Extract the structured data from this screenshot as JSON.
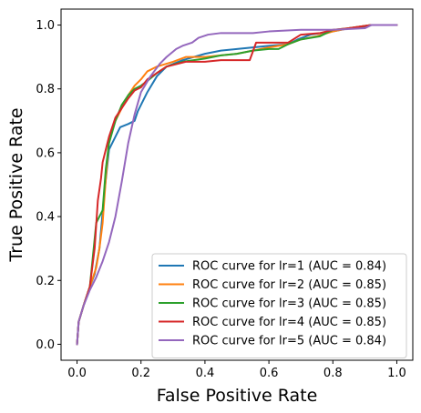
{
  "chart_data": {
    "type": "line",
    "title": "",
    "xlabel": "False Positive Rate",
    "ylabel": "True Positive Rate",
    "xlim": [
      -0.05,
      1.05
    ],
    "ylim": [
      -0.05,
      1.05
    ],
    "x_ticks": [
      "0.0",
      "0.2",
      "0.4",
      "0.6",
      "0.8",
      "1.0"
    ],
    "y_ticks": [
      "0.0",
      "0.2",
      "0.4",
      "0.6",
      "0.8",
      "1.0"
    ],
    "grid": false,
    "legend_position": "lower-right",
    "series": [
      {
        "name": "ROC curve for lr=1 (AUC = 0.84)",
        "color": "#1f77b4",
        "x": [
          0.0,
          0.005,
          0.02,
          0.04,
          0.055,
          0.07,
          0.085,
          0.1,
          0.12,
          0.135,
          0.16,
          0.18,
          0.19,
          0.22,
          0.25,
          0.28,
          0.33,
          0.4,
          0.45,
          0.5,
          0.55,
          0.6,
          0.66,
          0.69,
          0.73,
          0.8,
          0.85,
          0.9,
          0.92,
          1.0
        ],
        "y": [
          0.0,
          0.07,
          0.12,
          0.18,
          0.22,
          0.3,
          0.47,
          0.61,
          0.65,
          0.68,
          0.69,
          0.7,
          0.73,
          0.79,
          0.84,
          0.87,
          0.89,
          0.91,
          0.92,
          0.925,
          0.93,
          0.935,
          0.94,
          0.955,
          0.97,
          0.98,
          0.99,
          0.995,
          1.0,
          1.0
        ]
      },
      {
        "name": "ROC curve for lr=2 (AUC = 0.85)",
        "color": "#ff7f0e",
        "x": [
          0.0,
          0.005,
          0.02,
          0.04,
          0.06,
          0.07,
          0.08,
          0.09,
          0.1,
          0.12,
          0.14,
          0.16,
          0.18,
          0.2,
          0.22,
          0.25,
          0.3,
          0.34,
          0.4,
          0.45,
          0.5,
          0.55,
          0.6,
          0.66,
          0.7,
          0.75,
          0.8,
          0.85,
          0.92,
          1.0
        ],
        "y": [
          0.0,
          0.07,
          0.12,
          0.18,
          0.24,
          0.3,
          0.38,
          0.52,
          0.64,
          0.7,
          0.74,
          0.78,
          0.81,
          0.83,
          0.855,
          0.87,
          0.885,
          0.9,
          0.9,
          0.905,
          0.91,
          0.92,
          0.93,
          0.94,
          0.955,
          0.965,
          0.98,
          0.99,
          1.0,
          1.0
        ]
      },
      {
        "name": "ROC curve for lr=3 (AUC = 0.85)",
        "color": "#2ca02c",
        "x": [
          0.0,
          0.005,
          0.02,
          0.04,
          0.06,
          0.08,
          0.09,
          0.1,
          0.12,
          0.14,
          0.16,
          0.18,
          0.2,
          0.22,
          0.25,
          0.28,
          0.33,
          0.4,
          0.45,
          0.5,
          0.55,
          0.6,
          0.63,
          0.66,
          0.7,
          0.76,
          0.8,
          0.85,
          0.92,
          1.0
        ],
        "y": [
          0.0,
          0.07,
          0.12,
          0.18,
          0.38,
          0.42,
          0.55,
          0.63,
          0.7,
          0.75,
          0.78,
          0.8,
          0.81,
          0.825,
          0.85,
          0.87,
          0.885,
          0.895,
          0.905,
          0.91,
          0.92,
          0.925,
          0.925,
          0.94,
          0.955,
          0.965,
          0.985,
          0.99,
          1.0,
          1.0
        ]
      },
      {
        "name": "ROC curve for lr=4 (AUC = 0.85)",
        "color": "#d62728",
        "x": [
          0.0,
          0.005,
          0.02,
          0.04,
          0.055,
          0.065,
          0.075,
          0.08,
          0.09,
          0.1,
          0.12,
          0.14,
          0.16,
          0.18,
          0.2,
          0.22,
          0.25,
          0.28,
          0.3,
          0.34,
          0.4,
          0.45,
          0.5,
          0.54,
          0.56,
          0.6,
          0.66,
          0.7,
          0.76,
          0.8,
          0.85,
          0.92,
          1.0
        ],
        "y": [
          0.0,
          0.07,
          0.12,
          0.18,
          0.3,
          0.45,
          0.52,
          0.57,
          0.61,
          0.65,
          0.71,
          0.74,
          0.77,
          0.795,
          0.805,
          0.83,
          0.85,
          0.87,
          0.875,
          0.885,
          0.885,
          0.89,
          0.89,
          0.89,
          0.945,
          0.945,
          0.945,
          0.97,
          0.975,
          0.985,
          0.99,
          1.0,
          1.0
        ]
      },
      {
        "name": "ROC curve for lr=5 (AUC = 0.84)",
        "color": "#9467bd",
        "x": [
          0.0,
          0.005,
          0.02,
          0.04,
          0.06,
          0.08,
          0.1,
          0.12,
          0.14,
          0.16,
          0.18,
          0.2,
          0.23,
          0.26,
          0.28,
          0.31,
          0.33,
          0.36,
          0.38,
          0.41,
          0.45,
          0.5,
          0.55,
          0.6,
          0.7,
          0.8,
          0.9,
          0.92,
          1.0
        ],
        "y": [
          0.0,
          0.07,
          0.12,
          0.17,
          0.21,
          0.26,
          0.32,
          0.4,
          0.51,
          0.63,
          0.72,
          0.79,
          0.84,
          0.88,
          0.9,
          0.925,
          0.935,
          0.945,
          0.96,
          0.97,
          0.975,
          0.975,
          0.975,
          0.98,
          0.985,
          0.985,
          0.99,
          1.0,
          1.0
        ]
      }
    ]
  }
}
